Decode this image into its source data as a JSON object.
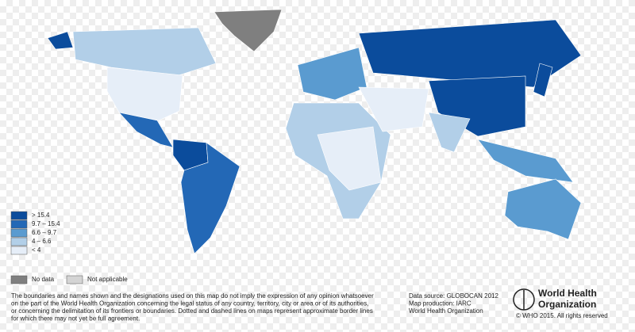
{
  "legend": {
    "items": [
      {
        "label": "> 15.4",
        "color": "#0b4c9c"
      },
      {
        "label": "9.7 – 15.4",
        "color": "#2368b6"
      },
      {
        "label": "6.6 – 9.7",
        "color": "#5a9bd0"
      },
      {
        "label": "4 – 6.6",
        "color": "#b2cfe8"
      },
      {
        "label": "< 4",
        "color": "#e6eef8"
      }
    ],
    "extra": [
      {
        "label": "No data",
        "color": "#7f7f7f"
      },
      {
        "label": "Not applicable",
        "color": "#d4d4d4"
      }
    ]
  },
  "disclaimer": [
    "The boundaries and names shown and the designations used on this map do not imply the expression of any opinion whatsoever",
    "on the part of the World Health Organization concerning the legal status of any country, territory, city or area or of its authorities,",
    "or concerning the delimitation of its frontiers or boundaries. Dotted and dashed lines on maps represent approximate border lines",
    "for which there may not yet be full agreement."
  ],
  "source": [
    "Data source: GLOBOCAN 2012",
    "Map production: IARC",
    "World Health Organization"
  ],
  "organization": [
    "World Health",
    "Organization"
  ],
  "copyright": "© WHO 2015. All rights reserved"
}
